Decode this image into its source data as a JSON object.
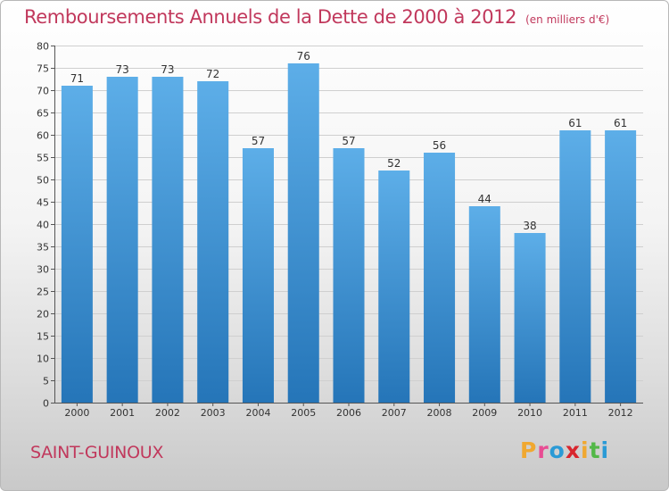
{
  "header": {
    "title": "Remboursements Annuels de la Dette de 2000 à 2012",
    "unit": "(en milliers d'€)"
  },
  "footer": {
    "commune": "SAINT-GUINOUX",
    "brand": [
      "P",
      "r",
      "o",
      "x",
      "i",
      "t",
      "i"
    ],
    "brand_colors": [
      "#f0a830",
      "#e84c93",
      "#2a9ad6",
      "#d8262e",
      "#f0a830",
      "#53b848",
      "#2a9ad6"
    ]
  },
  "chart_data": {
    "type": "bar",
    "title": "Remboursements Annuels de la Dette de 2000 à 2012",
    "categories": [
      "2000",
      "2001",
      "2002",
      "2003",
      "2004",
      "2005",
      "2006",
      "2007",
      "2008",
      "2009",
      "2010",
      "2011",
      "2012"
    ],
    "values": [
      71,
      73,
      73,
      72,
      57,
      76,
      57,
      52,
      56,
      44,
      38,
      61,
      61
    ],
    "data_labels": [
      "71",
      "73",
      "73",
      "72",
      "57",
      "76",
      "57",
      "52",
      "56",
      "44",
      "38",
      "61",
      "61"
    ],
    "ylim": [
      0,
      80
    ],
    "yticks": [
      0,
      5,
      10,
      15,
      20,
      25,
      30,
      35,
      40,
      45,
      50,
      55,
      60,
      65,
      70,
      75,
      80
    ],
    "grid": true,
    "bar_color_top": "#5daee8",
    "bar_color_bottom": "#2575b8"
  }
}
